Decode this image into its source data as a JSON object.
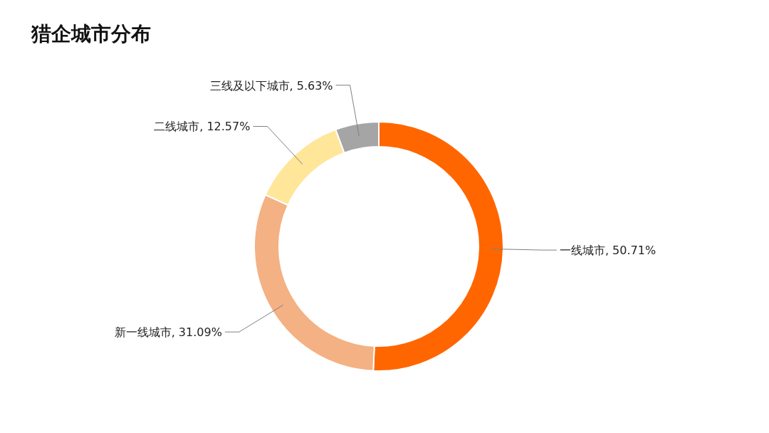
{
  "chart_data": {
    "type": "donut",
    "title": "猎企城市分布",
    "categories": [
      "一线城市",
      "新一线城市",
      "二线城市",
      "三线及以下城市"
    ],
    "values": [
      50.71,
      31.09,
      12.57,
      5.63
    ],
    "colors": [
      "#ff6600",
      "#f4b183",
      "#ffe699",
      "#a5a5a5"
    ],
    "value_labels": [
      ", 50.71%",
      ", 31.09%",
      ", 12.57%",
      ", 5.63%"
    ]
  }
}
